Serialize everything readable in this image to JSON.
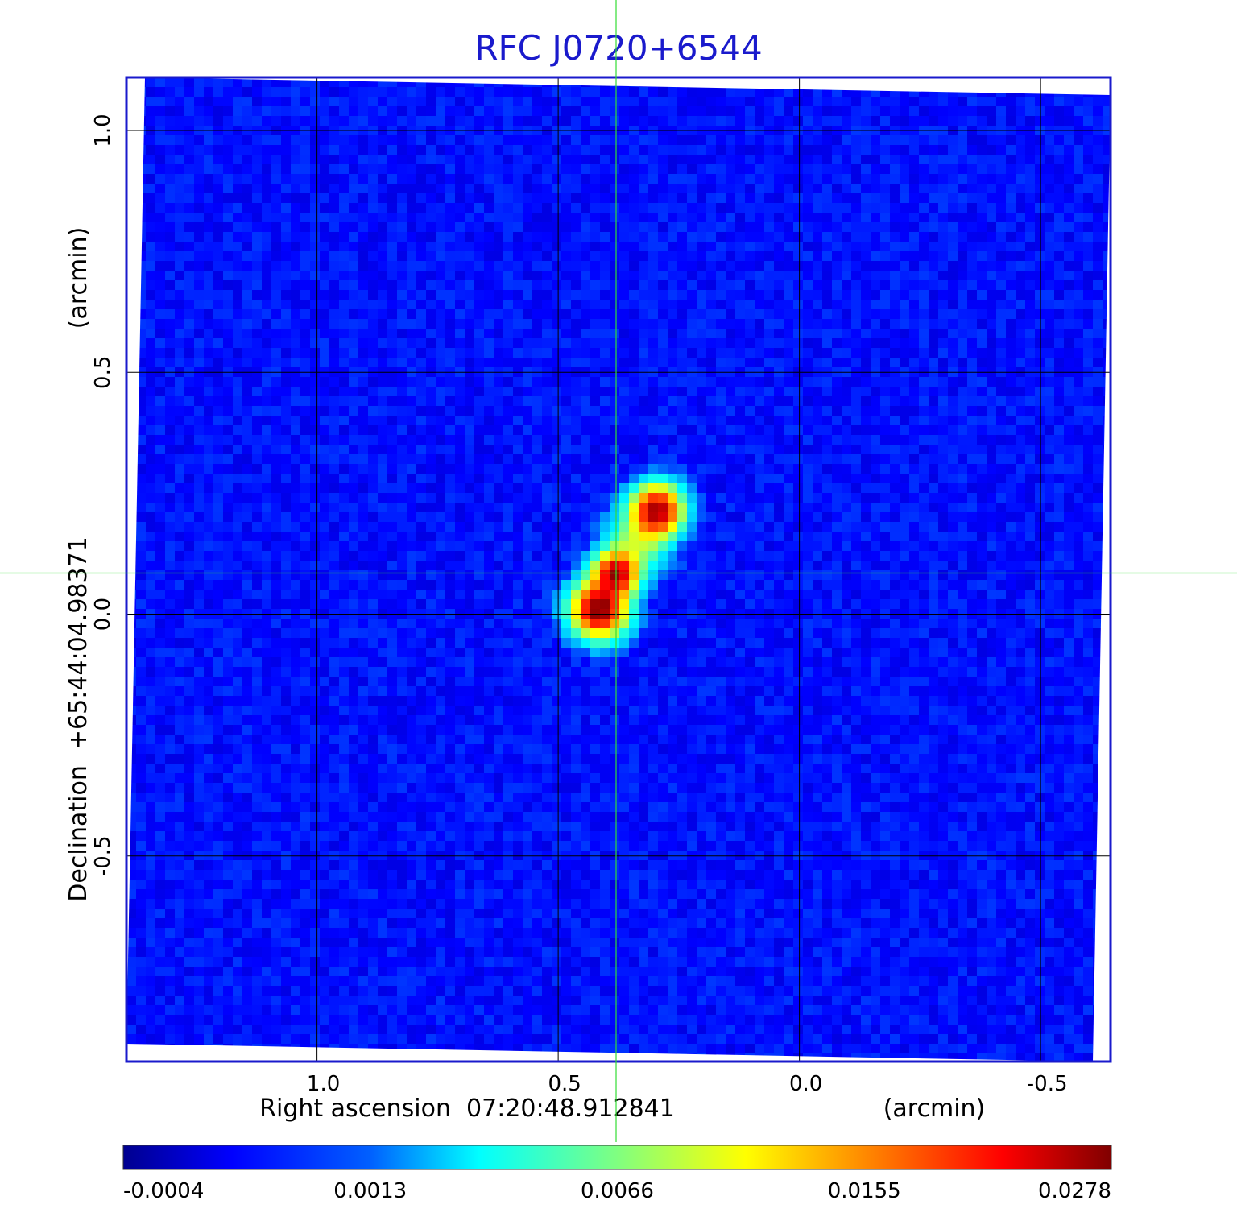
{
  "chart_data": {
    "type": "heatmap",
    "title": "RFC J0720+6544",
    "xlabel": "Right ascension  07:20:48.912841",
    "xlabel_unit": "(arcmin)",
    "ylabel": "Declination  +65:44:04.98371",
    "ylabel_unit": "(arcmin)",
    "x_axis_direction": "decreasing to the right",
    "xlim": [
      1.395,
      -0.645
    ],
    "ylim": [
      -0.925,
      1.11
    ],
    "xticks": [
      1.0,
      0.5,
      0.0,
      -0.5
    ],
    "xtick_labels": [
      "1.0",
      "0.5",
      "0.0",
      "-0.5"
    ],
    "yticks": [
      1.0,
      0.5,
      0.0,
      -0.5
    ],
    "ytick_labels": [
      "1.0",
      "0.5",
      "0.0",
      "-0.5"
    ],
    "grid": true,
    "crosshair": {
      "x": 0.38,
      "y": 0.085,
      "color": "#33dd33"
    },
    "colormap": "jet",
    "colorbar": {
      "tick_labels": [
        "-0.0004",
        "0.0013",
        "0.0066",
        "0.0155",
        "0.0278"
      ],
      "tick_fractions": [
        0.0,
        0.25,
        0.5,
        0.75,
        1.0
      ]
    },
    "sources": [
      {
        "x": 0.415,
        "y": 0.01,
        "peak": 0.0278,
        "sigma_arcmin": 0.035
      },
      {
        "x": 0.38,
        "y": 0.085,
        "peak": 0.024,
        "sigma_arcmin": 0.028
      },
      {
        "x": 0.295,
        "y": 0.215,
        "peak": 0.0255,
        "sigma_arcmin": 0.032
      },
      {
        "x": 0.335,
        "y": 0.15,
        "peak": 0.0065,
        "sigma_arcmin": 0.04
      }
    ],
    "noise_level": 0.0003,
    "frame_color": "#1a1acc"
  }
}
